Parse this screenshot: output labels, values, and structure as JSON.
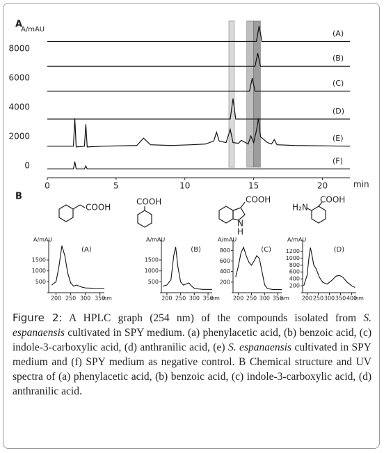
{
  "panel_labels": [
    "A",
    "B"
  ],
  "chart_data": [
    {
      "type": "line",
      "ylabel": "A/mAU",
      "xlabel": "min",
      "xlim": [
        0,
        22
      ],
      "ylim": [
        -800,
        9900
      ],
      "xticks": [
        0,
        5,
        10,
        15,
        20
      ],
      "yticks": [
        0,
        2000,
        4000,
        6000,
        8000
      ],
      "highlights": [
        {
          "range": [
            13.2,
            13.6
          ],
          "color": "#d4d4d4"
        },
        {
          "range": [
            14.5,
            15.0
          ],
          "color": "#b4b4b4"
        },
        {
          "range": [
            15.0,
            15.5
          ],
          "color": "#8c8c8c"
        }
      ],
      "series": [
        {
          "name": "(A)",
          "color": "#111",
          "x": [
            0,
            15.2,
            15.4,
            15.6,
            22
          ],
          "values": [
            8500,
            8500,
            9550,
            8500,
            8500
          ]
        },
        {
          "name": "(B)",
          "color": "#111",
          "x": [
            0,
            15.1,
            15.3,
            15.5,
            22
          ],
          "values": [
            6800,
            6800,
            7700,
            6800,
            6800
          ]
        },
        {
          "name": "(C)",
          "color": "#111",
          "x": [
            0,
            14.7,
            14.9,
            15.1,
            22
          ],
          "values": [
            5100,
            5100,
            6000,
            5100,
            5100
          ]
        },
        {
          "name": "(D)",
          "color": "#111",
          "x": [
            0,
            13.3,
            13.5,
            13.7,
            22
          ],
          "values": [
            3200,
            3200,
            4600,
            3200,
            3200
          ]
        },
        {
          "name": "(E)",
          "color": "#111",
          "x": [
            0,
            1.9,
            2.0,
            2.1,
            2.7,
            2.8,
            2.9,
            4,
            6.5,
            7.0,
            7.5,
            9,
            10.5,
            11.5,
            12.1,
            12.3,
            12.5,
            13,
            13.3,
            13.5,
            13.9,
            14.1,
            14.6,
            14.8,
            15.0,
            15.2,
            15.35,
            15.5,
            16,
            16.3,
            16.5,
            16.7,
            18,
            22
          ],
          "values": [
            1350,
            1350,
            3250,
            1300,
            1350,
            2850,
            1300,
            1350,
            1400,
            1900,
            1450,
            1400,
            1450,
            1500,
            1700,
            2300,
            1700,
            1600,
            2500,
            1600,
            1550,
            1750,
            1500,
            2050,
            1600,
            2400,
            3250,
            2000,
            1600,
            1500,
            1800,
            1450,
            1400,
            1350
          ]
        },
        {
          "name": "(F)",
          "color": "#111",
          "x": [
            0,
            1.9,
            2.0,
            2.1,
            2.7,
            2.8,
            2.9,
            22
          ],
          "values": [
            -200,
            -200,
            300,
            -200,
            -200,
            0,
            -200,
            -200
          ]
        }
      ]
    },
    {
      "type": "line",
      "label": "(A)",
      "ylabel": "A/mAU",
      "xlabel": "nm",
      "xlim": [
        175,
        365
      ],
      "ylim": [
        0,
        2300
      ],
      "xticks": [
        200,
        250,
        300,
        350
      ],
      "yticks": [
        500,
        1000,
        1500
      ],
      "color": "#111",
      "x": [
        185,
        200,
        210,
        220,
        230,
        240,
        250,
        260,
        270,
        280,
        290,
        300,
        330,
        365
      ],
      "values": [
        350,
        500,
        1200,
        2150,
        1700,
        900,
        450,
        300,
        350,
        300,
        250,
        220,
        200,
        200
      ]
    },
    {
      "type": "line",
      "label": "(B)",
      "ylabel": "A/mAU",
      "xlabel": "nm",
      "xlim": [
        180,
        365
      ],
      "ylim": [
        0,
        2300
      ],
      "xticks": [
        200,
        250,
        300,
        350
      ],
      "yticks": [
        500,
        1000,
        1500
      ],
      "color": "#111",
      "x": [
        185,
        200,
        215,
        225,
        232,
        240,
        250,
        260,
        270,
        280,
        290,
        300,
        330,
        365
      ],
      "values": [
        300,
        350,
        600,
        1700,
        2100,
        1200,
        500,
        350,
        400,
        450,
        300,
        200,
        150,
        150
      ]
    },
    {
      "type": "line",
      "label": "(C)",
      "ylabel": "A/mAU",
      "xlabel": "nm",
      "xlim": [
        180,
        365
      ],
      "ylim": [
        0,
        950
      ],
      "xticks": [
        200,
        250,
        300,
        350
      ],
      "yticks": [
        200,
        400,
        600,
        800
      ],
      "color": "#111",
      "x": [
        190,
        200,
        210,
        220,
        230,
        240,
        250,
        260,
        270,
        280,
        290,
        300,
        310,
        330,
        365
      ],
      "values": [
        300,
        500,
        750,
        860,
        700,
        580,
        520,
        600,
        700,
        650,
        400,
        150,
        80,
        60,
        60
      ]
    },
    {
      "type": "line",
      "label": "(D)",
      "ylabel": "A/mAU",
      "xlabel": "nm",
      "xlim": [
        180,
        420
      ],
      "ylim": [
        0,
        1450
      ],
      "xticks": [
        200,
        250,
        300,
        350,
        400
      ],
      "yticks": [
        200,
        400,
        600,
        800,
        1000,
        1200
      ],
      "color": "#111",
      "x": [
        185,
        200,
        210,
        215,
        220,
        230,
        240,
        255,
        270,
        290,
        310,
        330,
        345,
        360,
        380,
        400,
        415
      ],
      "values": [
        200,
        500,
        1100,
        1300,
        1150,
        800,
        700,
        450,
        300,
        250,
        350,
        480,
        500,
        450,
        300,
        200,
        150
      ]
    }
  ],
  "structures": {
    "a_cooh": "COOH",
    "b_cooh": "COOH",
    "c_cooh": "COOH",
    "c_n": "N",
    "c_h": "H",
    "d_nh2": "H₂N",
    "d_cooh": "COOH"
  },
  "caption": {
    "label": "Figure 2:",
    "runs": [
      " A HPLC graph (254 nm) of the compounds isolated from ",
      "S. espanaensis",
      " cultivated in SPY medium. (a) phenylacetic acid, (b) benzoic acid, (c) indole-3-carboxylic acid, (d) anthranilic acid, (e) ",
      "S. espanaensis",
      " cultivated in SPY medium and (f) SPY medium as negative control. B Chemical structure and UV spectra of (a) phenylacetic acid, (b) benzoic acid, (c) indole-3-carboxylic acid, (d) anthranilic acid."
    ]
  }
}
